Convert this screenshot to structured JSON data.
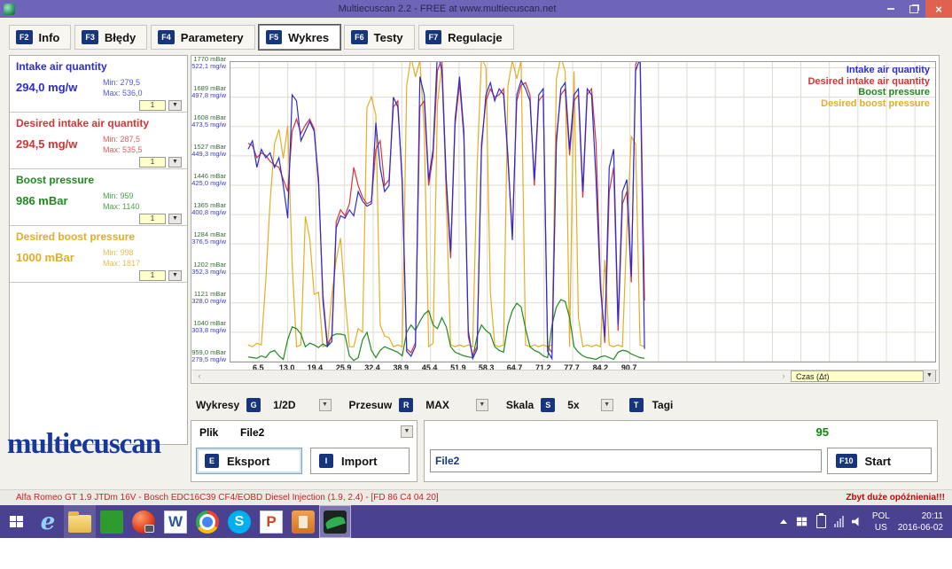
{
  "window": {
    "title": "Multiecuscan 2.2 - FREE at www.multiecuscan.net"
  },
  "tabs": [
    {
      "key": "F2",
      "label": "Info",
      "active": false
    },
    {
      "key": "F3",
      "label": "Błędy",
      "active": false
    },
    {
      "key": "F4",
      "label": "Parametery",
      "active": false
    },
    {
      "key": "F5",
      "label": "Wykres",
      "active": true
    },
    {
      "key": "F6",
      "label": "Testy",
      "active": false
    },
    {
      "key": "F7",
      "label": "Regulacje",
      "active": false
    }
  ],
  "sidebar": {
    "params": [
      {
        "name": "Intake air quantity",
        "value": "294,0 mg/w",
        "min": "Min: 279,5",
        "max": "Max: 536,0",
        "scale": "1",
        "color": "#2b2bd6"
      },
      {
        "name": "Desired intake air quantity",
        "value": "294,5 mg/w",
        "min": "Min: 287,5",
        "max": "Max: 535,5",
        "scale": "1",
        "color": "#d53434"
      },
      {
        "name": "Boost pressure",
        "value": "986 mBar",
        "min": "Min: 959",
        "max": "Max: 1140",
        "scale": "1",
        "color": "#1f8a1f"
      },
      {
        "name": "Desired boost pressure",
        "value": "1000 mBar",
        "min": "Min: 998",
        "max": "Max: 1817",
        "scale": "1",
        "color": "#e3ae23"
      }
    ]
  },
  "chart": {
    "scroll_combo": "Czas (Δt)",
    "scroll_left": "‹",
    "scroll_right": "›"
  },
  "chart_data": {
    "type": "line",
    "title": "",
    "grid": true,
    "legend_position": "top-right",
    "x_axis": {
      "variable": "Czas (Δt)",
      "tick_labels": [
        "6,5",
        "13,0",
        "19,4",
        "25,9",
        "32,4",
        "38,9",
        "45,4",
        "51,9",
        "58,3",
        "64,7",
        "71,2",
        "77,7",
        "84,2",
        "90,7"
      ],
      "tick_values": [
        6.5,
        13.0,
        19.4,
        25.9,
        32.4,
        38.9,
        45.4,
        51.9,
        58.3,
        64.7,
        71.2,
        77.7,
        84.2,
        90.7
      ],
      "visible_range": [
        0,
        160
      ],
      "grid_step": 6.47
    },
    "y_axis": {
      "mbar_range": [
        959,
        1786
      ],
      "mgw_range": [
        279.5,
        527.1
      ],
      "grid_step_mbar": 81,
      "ticks": [
        {
          "mbar": "959,0 mBar",
          "mgw": "279,5 mg/w",
          "mbar_value": 959
        },
        {
          "mbar": "1040 mBar",
          "mgw": "303,8 mg/w",
          "mbar_value": 1040
        },
        {
          "mbar": "1121 mBar",
          "mgw": "328,0 mg/w",
          "mbar_value": 1121
        },
        {
          "mbar": "1202 mBar",
          "mgw": "352,3 mg/w",
          "mbar_value": 1202
        },
        {
          "mbar": "1284 mBar",
          "mgw": "376,5 mg/w",
          "mbar_value": 1284
        },
        {
          "mbar": "1365 mBar",
          "mgw": "400,8 mg/w",
          "mbar_value": 1365
        },
        {
          "mbar": "1446 mBar",
          "mgw": "425,0 mg/w",
          "mbar_value": 1446
        },
        {
          "mbar": "1527 mBar",
          "mgw": "449,3 mg/w",
          "mbar_value": 1527
        },
        {
          "mbar": "1608 mBar",
          "mgw": "473,5 mg/w",
          "mbar_value": 1608
        },
        {
          "mbar": "1689 mBar",
          "mgw": "497,8 mg/w",
          "mbar_value": 1689
        },
        {
          "mbar": "1770 mBar",
          "mgw": "522,1 mg/w",
          "mbar_value": 1770
        }
      ]
    },
    "series": [
      {
        "name": "Intake air quantity",
        "unit": "mg/w",
        "color": "#2b2bd6",
        "x_start": 4,
        "x_step": 1,
        "values": [
          455,
          462,
          440,
          455,
          448,
          452,
          440,
          448,
          425,
          398,
          500,
          495,
          462,
          470,
          478,
          470,
          430,
          330,
          292,
          296,
          390,
          400,
          398,
          405,
          400,
          420,
          412,
          408,
          410,
          477,
          440,
          420,
          425,
          498,
          490,
          430,
          288,
          284,
          292,
          515,
          500,
          430,
          455,
          536,
          520,
          430,
          370,
          480,
          515,
          470,
          305,
          282,
          290,
          455,
          500,
          510,
          495,
          505,
          500,
          450,
          380,
          500,
          512,
          505,
          495,
          430,
          500,
          505,
          288,
          282,
          460,
          505,
          510,
          455,
          500,
          505,
          420,
          505,
          500,
          430,
          340,
          300,
          440,
          455,
          310,
          420,
          430,
          350,
          520,
          530,
          290
        ]
      },
      {
        "name": "Desired intake air quantity",
        "unit": "mg/w",
        "color": "#d53434",
        "x_start": 4,
        "x_step": 1,
        "values": [
          460,
          458,
          448,
          452,
          450,
          445,
          442,
          440,
          430,
          420,
          470,
          480,
          468,
          475,
          480,
          472,
          425,
          335,
          294,
          300,
          395,
          405,
          400,
          410,
          440,
          425,
          415,
          410,
          412,
          455,
          462,
          425,
          430,
          490,
          495,
          425,
          290,
          287,
          295,
          490,
          495,
          425,
          450,
          520,
          530,
          425,
          365,
          475,
          510,
          465,
          300,
          285,
          292,
          460,
          495,
          505,
          498,
          500,
          505,
          445,
          385,
          495,
          508,
          510,
          500,
          425,
          495,
          500,
          292,
          287,
          465,
          500,
          505,
          450,
          495,
          500,
          415,
          500,
          505,
          460,
          345,
          295,
          420,
          440,
          305,
          410,
          420,
          345,
          525,
          535,
          330
        ]
      },
      {
        "name": "Boost pressure",
        "unit": "mBar",
        "color": "#1f8a1f",
        "x_start": 4,
        "x_step": 1,
        "values": [
          972,
          970,
          968,
          975,
          970,
          985,
          990,
          975,
          965,
          1020,
          1055,
          1050,
          1035,
          1000,
          1010,
          1005,
          998,
          1008,
          1000,
          1030,
          1035,
          1035,
          1032,
          975,
          962,
          970,
          1020,
          1040,
          990,
          970,
          990,
          1000,
          995,
          990,
          985,
          975,
          1040,
          1060,
          1045,
          1070,
          1090,
          1100,
          1060,
          1050,
          1080,
          1055,
          1000,
          985,
          980,
          975,
          972,
          970,
          1030,
          1060,
          1045,
          1035,
          1000,
          990,
          985,
          1060,
          1100,
          1120,
          1110,
          1050,
          1000,
          990,
          985,
          975,
          970,
          1060,
          1110,
          1130,
          1125,
          1080,
          1000,
          985,
          975,
          970,
          968,
          965,
          972,
          975,
          970,
          965,
          985,
          990,
          988,
          980,
          975,
          970,
          968
        ]
      },
      {
        "name": "Desired boost pressure",
        "unit": "mBar",
        "color": "#e3ae23",
        "x_start": 4,
        "x_step": 1,
        "values": [
          1005,
          1000,
          1010,
          1005,
          1180,
          1400,
          1560,
          1600,
          1520,
          1610,
          1230,
          1000,
          1005,
          1360,
          1300,
          1145,
          1150,
          1000,
          1005,
          1140,
          1240,
          1300,
          1135,
          1000,
          1000,
          1050,
          1040,
          1660,
          1690,
          1640,
          1060,
          1030,
          1025,
          1000,
          1005,
          1000,
          1720,
          1800,
          1745,
          1790,
          1600,
          1000,
          1010,
          1670,
          1780,
          1400,
          1005,
          1000,
          1005,
          1000,
          1005,
          1000,
          1500,
          1800,
          1770,
          1150,
          1005,
          1000,
          1005,
          1720,
          1790,
          1740,
          1790,
          1005,
          1000,
          1005,
          1000,
          1005,
          1000,
          1005,
          1740,
          1800,
          1760,
          1000,
          1760,
          1080,
          1000,
          1005,
          1000,
          1005,
          1000,
          1240,
          1005,
          1000,
          1005,
          1000,
          1320,
          1580,
          1560,
          1005,
          1000
        ]
      }
    ]
  },
  "controls": {
    "wykresy_label": "Wykresy",
    "wykresy_key": "G",
    "wykresy_value": "1/2D",
    "przesuw_label": "Przesuw",
    "przesuw_key": "R",
    "przesuw_value": "MAX",
    "skala_label": "Skala",
    "skala_key": "S",
    "skala_value": "5x",
    "tagi_key": "T",
    "tagi_label": "Tagi"
  },
  "file_panel": {
    "plik_label": "Plik",
    "file_value": "File2",
    "eksport_key": "E",
    "eksport_label": "Eksport",
    "import_key": "I",
    "import_label": "Import"
  },
  "record_panel": {
    "counter": "95",
    "file_input_value": "File2",
    "start_key": "F10",
    "start_label": "Start"
  },
  "logo": {
    "text": "multiecuscan"
  },
  "status_bar": {
    "left": "Alfa Romeo GT 1.9 JTDm 16V - Bosch EDC16C39 CF4/EOBD Diesel Injection (1.9, 2.4) - [FD 86 C4 04 20]",
    "right": "Zbyt duże opóźnienia!!!"
  },
  "taskbar": {
    "apps": [
      {
        "name": "internet-explorer",
        "type": "ie",
        "glyph": "e",
        "open": false,
        "active": false
      },
      {
        "name": "file-explorer",
        "type": "explorer",
        "glyph": "",
        "open": true,
        "active": false
      },
      {
        "name": "windows-store",
        "type": "store",
        "glyph": "",
        "open": false,
        "active": false
      },
      {
        "name": "photos-app",
        "type": "photos",
        "glyph": "",
        "open": false,
        "active": false
      },
      {
        "name": "word",
        "type": "word",
        "glyph": "W",
        "open": false,
        "active": false
      },
      {
        "name": "chrome",
        "type": "chrome",
        "glyph": "",
        "open": false,
        "active": false
      },
      {
        "name": "skype",
        "type": "skype",
        "glyph": "S",
        "open": false,
        "active": false
      },
      {
        "name": "powerpoint",
        "type": "powerpoint",
        "glyph": "P",
        "open": false,
        "active": false
      },
      {
        "name": "diagnostic-tool",
        "type": "fiatecuscan",
        "glyph": "",
        "open": false,
        "active": false
      },
      {
        "name": "multiecuscan-app",
        "type": "multiecuscan",
        "glyph": "",
        "open": true,
        "active": true
      }
    ],
    "tray": {
      "lang_top": "POL",
      "lang_bottom": "US",
      "time": "20:11",
      "date": "2016-06-02"
    }
  },
  "colors": {
    "titlebar": "#6e64b8",
    "taskbar": "#4a4191",
    "keycap_navy": "#16357d",
    "status_red": "#cc2222",
    "counter_green": "#0a8a0a",
    "combo_yellow": "#ffffc8",
    "logo_blue": "#16389e"
  }
}
